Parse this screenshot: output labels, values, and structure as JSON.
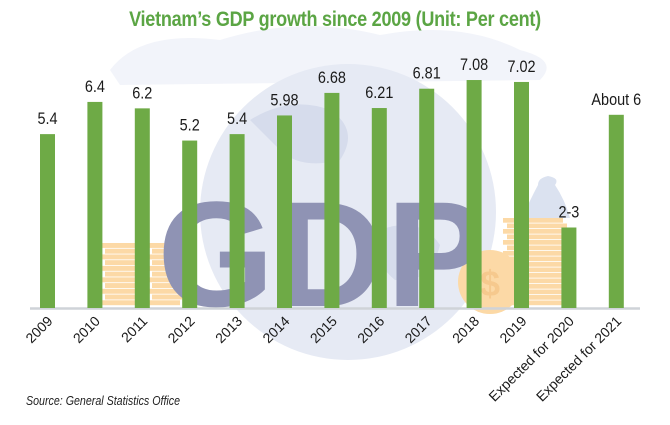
{
  "title": "Vietnam’s GDP growth since 2009 (Unit: Per cent)",
  "source": "Source: General Statistics Office",
  "colors": {
    "bar": "#6eaa46",
    "title": "#5ba544",
    "baseline": "#cfd3d8",
    "globe": "#e6eaf4",
    "gdp_letters": "#8f93b4",
    "coins": "#fcd9a6"
  },
  "background": {
    "watermark_text": "GDP"
  },
  "chart_data": {
    "type": "bar",
    "title": "Vietnam’s GDP growth since 2009 (Unit: Per cent)",
    "xlabel": "",
    "ylabel": "Per cent",
    "ylim": [
      0,
      7.5
    ],
    "grid": false,
    "legend": "none",
    "categories": [
      "2009",
      "2010",
      "2011",
      "2012",
      "2013",
      "2014",
      "2015",
      "2016",
      "2017",
      "2018",
      "2019",
      "Expected for 2020",
      "Expected for 2021"
    ],
    "values": [
      5.4,
      6.4,
      6.2,
      5.2,
      5.4,
      5.98,
      6.68,
      6.21,
      6.81,
      7.08,
      7.02,
      2.5,
      6
    ],
    "data_labels": [
      "5.4",
      "6.4",
      "6.2",
      "5.2",
      "5.4",
      "5.98",
      "6.68",
      "6.21",
      "6.81",
      "7.08",
      "7.02",
      "2-3",
      "About 6"
    ]
  }
}
